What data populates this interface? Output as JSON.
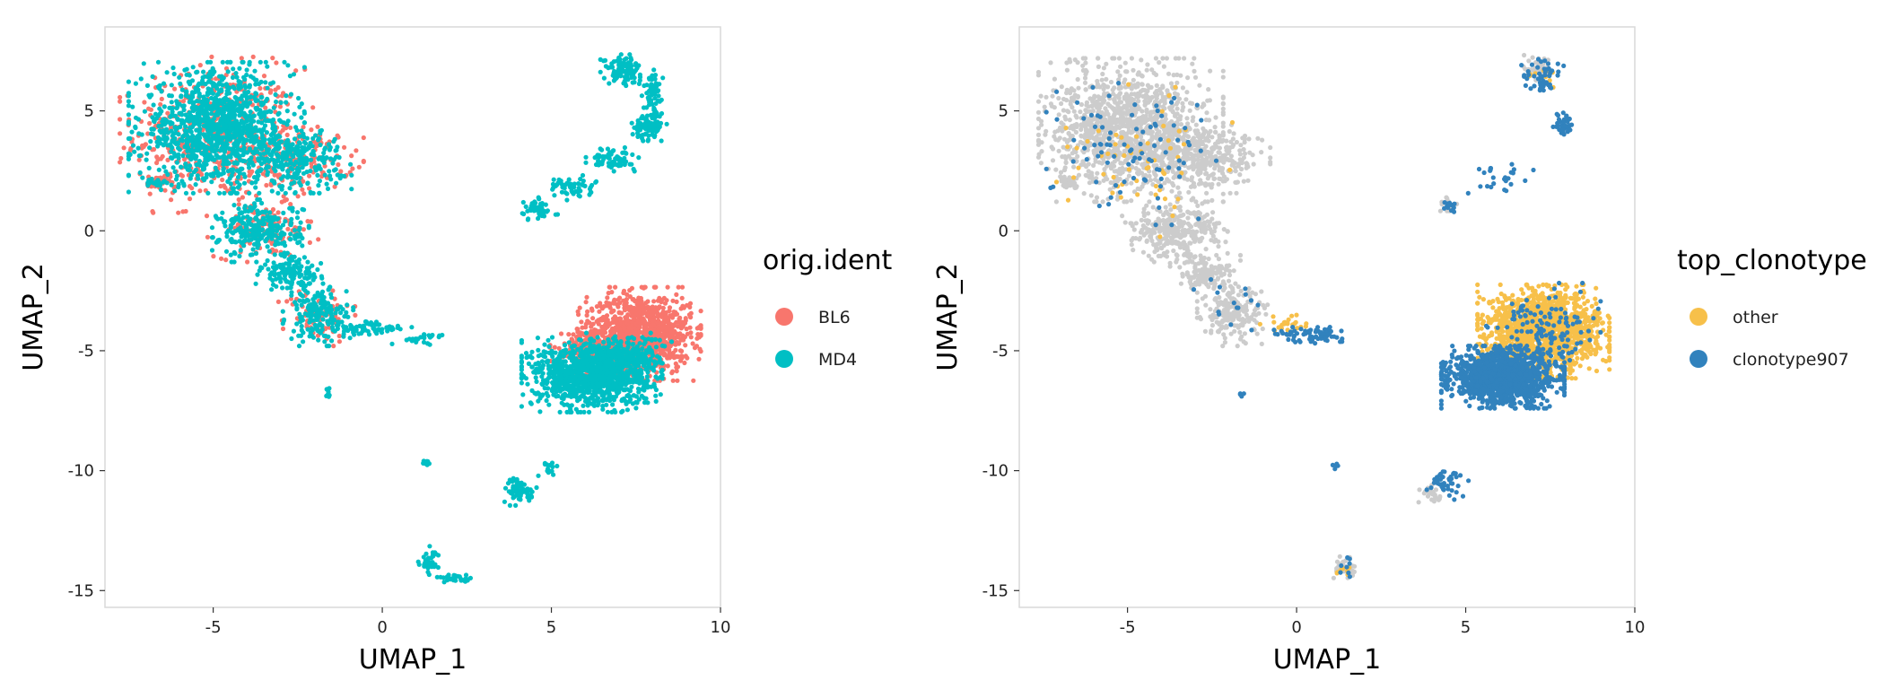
{
  "chart_data": [
    {
      "type": "scatter",
      "xlabel": "UMAP_1",
      "ylabel": "UMAP_2",
      "xlim": [
        -8.2,
        10
      ],
      "ylim": [
        -15.7,
        8.5
      ],
      "x_ticks": [
        -5,
        0,
        5,
        10
      ],
      "y_ticks": [
        -15,
        -10,
        -5,
        0,
        5
      ],
      "grid": false,
      "legend": {
        "title": "orig.ident",
        "placement": "right",
        "entries": [
          {
            "label": "BL6",
            "color": "#F8766D"
          },
          {
            "label": "MD4",
            "color": "#00BFC4"
          }
        ]
      },
      "series": [
        {
          "name": "BL6",
          "color": "#F8766D",
          "clusters": [
            {
              "cx": -4.9,
              "cy": 4.0,
              "rx": 2.2,
              "ry": 2.5,
              "n": 500
            },
            {
              "cx": -2.5,
              "cy": 3.0,
              "rx": 1.5,
              "ry": 1.2,
              "n": 150
            },
            {
              "cx": -6.6,
              "cy": 2.0,
              "rx": 0.3,
              "ry": 0.3,
              "n": 30
            },
            {
              "cx": -3.5,
              "cy": 0.0,
              "rx": 1.3,
              "ry": 1.0,
              "n": 120
            },
            {
              "cx": -1.9,
              "cy": -3.5,
              "rx": 0.9,
              "ry": 1.0,
              "n": 80
            },
            {
              "cx": 7.6,
              "cy": -4.3,
              "rx": 1.4,
              "ry": 1.5,
              "n": 1100
            },
            {
              "cx": 6.0,
              "cy": -5.0,
              "rx": 1.0,
              "ry": 0.7,
              "n": 150
            }
          ]
        },
        {
          "name": "MD4",
          "color": "#00BFC4",
          "clusters": [
            {
              "cx": -4.9,
              "cy": 4.3,
              "rx": 2.0,
              "ry": 2.1,
              "n": 1100
            },
            {
              "cx": -2.6,
              "cy": 3.0,
              "rx": 1.3,
              "ry": 1.1,
              "n": 250
            },
            {
              "cx": -3.6,
              "cy": 0.0,
              "rx": 1.1,
              "ry": 1.0,
              "n": 280
            },
            {
              "cx": -2.7,
              "cy": -1.8,
              "rx": 0.8,
              "ry": 0.6,
              "n": 120
            },
            {
              "cx": -1.9,
              "cy": -3.5,
              "rx": 0.8,
              "ry": 1.0,
              "n": 180
            },
            {
              "cx": -6.7,
              "cy": 2.0,
              "rx": 0.3,
              "ry": 0.2,
              "n": 25
            },
            {
              "cx": -0.3,
              "cy": -4.1,
              "rx": 0.9,
              "ry": 0.3,
              "n": 60
            },
            {
              "cx": 1.2,
              "cy": -4.5,
              "rx": 0.7,
              "ry": 0.2,
              "n": 25
            },
            {
              "cx": -1.6,
              "cy": -6.8,
              "rx": 0.08,
              "ry": 0.25,
              "n": 8
            },
            {
              "cx": 7.1,
              "cy": 6.7,
              "rx": 0.5,
              "ry": 0.5,
              "n": 110
            },
            {
              "cx": 7.9,
              "cy": 4.4,
              "rx": 0.4,
              "ry": 0.5,
              "n": 90
            },
            {
              "cx": 8.0,
              "cy": 5.8,
              "rx": 0.25,
              "ry": 0.7,
              "n": 60
            },
            {
              "cx": 6.8,
              "cy": 3.0,
              "rx": 0.6,
              "ry": 0.4,
              "n": 70
            },
            {
              "cx": 5.6,
              "cy": 1.8,
              "rx": 0.6,
              "ry": 0.4,
              "n": 50
            },
            {
              "cx": 4.6,
              "cy": 0.8,
              "rx": 0.5,
              "ry": 0.3,
              "n": 30
            },
            {
              "cx": 4.5,
              "cy": 1.0,
              "rx": 0.3,
              "ry": 0.3,
              "n": 25
            },
            {
              "cx": 6.2,
              "cy": -6.0,
              "rx": 1.6,
              "ry": 1.2,
              "n": 1100
            },
            {
              "cx": 7.0,
              "cy": -5.3,
              "rx": 1.2,
              "ry": 0.8,
              "n": 250
            },
            {
              "cx": 1.3,
              "cy": -9.7,
              "rx": 0.15,
              "ry": 0.1,
              "n": 12
            },
            {
              "cx": 4.1,
              "cy": -10.8,
              "rx": 0.4,
              "ry": 0.5,
              "n": 60
            },
            {
              "cx": 4.9,
              "cy": -9.9,
              "rx": 0.3,
              "ry": 0.3,
              "n": 15
            },
            {
              "cx": 1.4,
              "cy": -13.8,
              "rx": 0.3,
              "ry": 0.5,
              "n": 35
            },
            {
              "cx": 2.1,
              "cy": -14.5,
              "rx": 0.5,
              "ry": 0.15,
              "n": 30
            }
          ]
        }
      ]
    },
    {
      "type": "scatter",
      "xlabel": "UMAP_1",
      "ylabel": "UMAP_2",
      "xlim": [
        -8.2,
        10
      ],
      "ylim": [
        -15.7,
        8.5
      ],
      "x_ticks": [
        -5,
        0,
        5,
        10
      ],
      "y_ticks": [
        -15,
        -10,
        -5,
        0,
        5
      ],
      "grid": false,
      "legend": {
        "title": "top_clonotype",
        "placement": "right",
        "entries": [
          {
            "label": "other",
            "color": "#F7C04A"
          },
          {
            "label": "clonotype907",
            "color": "#3182BD"
          }
        ]
      },
      "series": [
        {
          "name": "",
          "color": "#CCCCCC",
          "clusters": [
            {
              "cx": -4.9,
              "cy": 4.2,
              "rx": 2.1,
              "ry": 2.3,
              "n": 1300
            },
            {
              "cx": -2.6,
              "cy": 3.0,
              "rx": 1.4,
              "ry": 1.1,
              "n": 300
            },
            {
              "cx": -3.6,
              "cy": 0.0,
              "rx": 1.2,
              "ry": 1.0,
              "n": 300
            },
            {
              "cx": -2.7,
              "cy": -1.8,
              "rx": 0.8,
              "ry": 0.6,
              "n": 130
            },
            {
              "cx": -1.9,
              "cy": -3.5,
              "rx": 0.8,
              "ry": 1.0,
              "n": 200
            },
            {
              "cx": -6.7,
              "cy": 2.0,
              "rx": 0.3,
              "ry": 0.2,
              "n": 25
            },
            {
              "cx": 7.2,
              "cy": 6.8,
              "rx": 0.4,
              "ry": 0.4,
              "n": 40
            },
            {
              "cx": 1.5,
              "cy": -14.1,
              "rx": 0.4,
              "ry": 0.4,
              "n": 30
            },
            {
              "cx": 4.0,
              "cy": -11.0,
              "rx": 0.3,
              "ry": 0.3,
              "n": 25
            },
            {
              "cx": 4.5,
              "cy": 1.0,
              "rx": 0.3,
              "ry": 0.3,
              "n": 15
            }
          ]
        },
        {
          "name": "other",
          "color": "#F7C04A",
          "clusters": [
            {
              "cx": 7.3,
              "cy": -4.2,
              "rx": 1.5,
              "ry": 1.5,
              "n": 1400
            },
            {
              "cx": -4.5,
              "cy": 3.0,
              "rx": 2.0,
              "ry": 2.5,
              "n": 60
            },
            {
              "cx": -0.3,
              "cy": -3.9,
              "rx": 0.6,
              "ry": 0.3,
              "n": 25
            },
            {
              "cx": 1.4,
              "cy": -14.2,
              "rx": 0.3,
              "ry": 0.3,
              "n": 8
            },
            {
              "cx": 7.3,
              "cy": 6.5,
              "rx": 0.4,
              "ry": 0.4,
              "n": 10
            }
          ]
        },
        {
          "name": "clonotype907",
          "color": "#3182BD",
          "clusters": [
            {
              "cx": 6.1,
              "cy": -6.1,
              "rx": 1.4,
              "ry": 1.0,
              "n": 1300
            },
            {
              "cx": 7.3,
              "cy": -4.0,
              "rx": 1.3,
              "ry": 1.4,
              "n": 120
            },
            {
              "cx": 7.3,
              "cy": 6.5,
              "rx": 0.5,
              "ry": 0.6,
              "n": 50
            },
            {
              "cx": 7.9,
              "cy": 4.4,
              "rx": 0.3,
              "ry": 0.4,
              "n": 40
            },
            {
              "cx": 6.0,
              "cy": 2.2,
              "rx": 0.8,
              "ry": 0.6,
              "n": 25
            },
            {
              "cx": 0.5,
              "cy": -4.3,
              "rx": 0.9,
              "ry": 0.3,
              "n": 70
            },
            {
              "cx": -4.8,
              "cy": 3.5,
              "rx": 2.0,
              "ry": 2.5,
              "n": 90
            },
            {
              "cx": -2.0,
              "cy": -3.0,
              "rx": 0.8,
              "ry": 1.0,
              "n": 15
            },
            {
              "cx": 4.5,
              "cy": -10.5,
              "rx": 0.5,
              "ry": 0.6,
              "n": 40
            },
            {
              "cx": 4.6,
              "cy": 1.0,
              "rx": 0.3,
              "ry": 0.3,
              "n": 12
            },
            {
              "cx": 1.2,
              "cy": -9.8,
              "rx": 0.1,
              "ry": 0.1,
              "n": 5
            },
            {
              "cx": -1.6,
              "cy": -6.9,
              "rx": 0.05,
              "ry": 0.1,
              "n": 4
            },
            {
              "cx": 1.5,
              "cy": -14.0,
              "rx": 0.2,
              "ry": 0.4,
              "n": 8
            }
          ]
        }
      ]
    }
  ]
}
